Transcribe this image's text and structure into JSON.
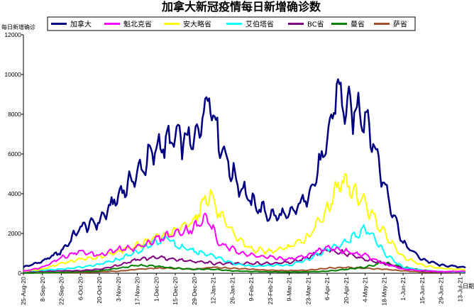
{
  "chart_data": {
    "type": "line",
    "title": "加拿大新冠疫情每日新增确诊数",
    "ylabel": "每日新增确诊",
    "xlabel": "日期",
    "ylim": [
      0,
      12000
    ],
    "yticks": [
      0,
      2000,
      4000,
      6000,
      8000,
      10000,
      12000
    ],
    "x_start": "2020-08-25",
    "x_end": "2021-07-17",
    "xtick_labels": [
      "25-Aug-20",
      "8-Sep-20",
      "22-Sep-20",
      "6-Oct-20",
      "20-Oct-20",
      "3-Nov-20",
      "17-Nov-20",
      "1-Dec-20",
      "15-Dec-20",
      "29-Dec-20",
      "12-Jan-21",
      "26-Jan-21",
      "9-Feb-21",
      "23-Feb-21",
      "9-Mar-21",
      "23-Mar-21",
      "6-Apr-21",
      "20-Apr-21",
      "4-May-21",
      "18-May-21",
      "1-Jun-21",
      "15-Jun-21",
      "29-Jun-21",
      "13-Jul-21"
    ],
    "grid": false,
    "legend_position": "top",
    "series": [
      {
        "name": "加拿大",
        "color": "#000080",
        "width": 2.5,
        "points": [
          [
            "2020-08-25",
            300
          ],
          [
            "2020-09-08",
            600
          ],
          [
            "2020-09-22",
            1100
          ],
          [
            "2020-10-06",
            2300
          ],
          [
            "2020-10-20",
            2600
          ],
          [
            "2020-11-03",
            3900
          ],
          [
            "2020-11-17",
            5000
          ],
          [
            "2020-12-01",
            6300
          ],
          [
            "2020-12-15",
            6800
          ],
          [
            "2020-12-29",
            6600
          ],
          [
            "2021-01-09",
            9100
          ],
          [
            "2021-01-16",
            6800
          ],
          [
            "2021-01-26",
            5000
          ],
          [
            "2021-02-09",
            3600
          ],
          [
            "2021-02-23",
            2900
          ],
          [
            "2021-03-09",
            2900
          ],
          [
            "2021-03-23",
            3900
          ],
          [
            "2021-04-06",
            6400
          ],
          [
            "2021-04-13",
            9400
          ],
          [
            "2021-04-20",
            8200
          ],
          [
            "2021-05-04",
            8100
          ],
          [
            "2021-05-18",
            4500
          ],
          [
            "2021-06-01",
            1500
          ],
          [
            "2021-06-15",
            700
          ],
          [
            "2021-06-29",
            400
          ],
          [
            "2021-07-17",
            300
          ]
        ]
      },
      {
        "name": "魁北克省",
        "color": "#ff00ff",
        "width": 2,
        "points": [
          [
            "2020-08-25",
            100
          ],
          [
            "2020-09-08",
            300
          ],
          [
            "2020-09-22",
            800
          ],
          [
            "2020-10-06",
            1100
          ],
          [
            "2020-10-20",
            900
          ],
          [
            "2020-11-03",
            1200
          ],
          [
            "2020-11-17",
            1300
          ],
          [
            "2020-12-01",
            1700
          ],
          [
            "2020-12-15",
            2000
          ],
          [
            "2020-12-29",
            2300
          ],
          [
            "2021-01-08",
            2800
          ],
          [
            "2021-01-16",
            1500
          ],
          [
            "2021-01-26",
            1200
          ],
          [
            "2021-02-09",
            900
          ],
          [
            "2021-02-23",
            800
          ],
          [
            "2021-03-09",
            700
          ],
          [
            "2021-03-23",
            900
          ],
          [
            "2021-04-06",
            1300
          ],
          [
            "2021-04-20",
            1100
          ],
          [
            "2021-05-04",
            900
          ],
          [
            "2021-05-18",
            500
          ],
          [
            "2021-06-01",
            200
          ],
          [
            "2021-06-15",
            130
          ],
          [
            "2021-06-29",
            80
          ],
          [
            "2021-07-17",
            100
          ]
        ]
      },
      {
        "name": "安大略省",
        "color": "#ffff00",
        "width": 2,
        "points": [
          [
            "2020-08-25",
            100
          ],
          [
            "2020-09-08",
            200
          ],
          [
            "2020-09-22",
            500
          ],
          [
            "2020-10-06",
            700
          ],
          [
            "2020-10-20",
            800
          ],
          [
            "2020-11-03",
            1100
          ],
          [
            "2020-11-17",
            1400
          ],
          [
            "2020-12-01",
            1800
          ],
          [
            "2020-12-15",
            2100
          ],
          [
            "2020-12-29",
            2700
          ],
          [
            "2021-01-09",
            4100
          ],
          [
            "2021-01-16",
            3000
          ],
          [
            "2021-01-26",
            2000
          ],
          [
            "2021-02-09",
            1200
          ],
          [
            "2021-02-23",
            1100
          ],
          [
            "2021-03-09",
            1300
          ],
          [
            "2021-03-23",
            1800
          ],
          [
            "2021-04-06",
            3200
          ],
          [
            "2021-04-16",
            4700
          ],
          [
            "2021-04-23",
            4300
          ],
          [
            "2021-05-04",
            3500
          ],
          [
            "2021-05-18",
            2000
          ],
          [
            "2021-06-01",
            800
          ],
          [
            "2021-06-15",
            400
          ],
          [
            "2021-06-29",
            250
          ],
          [
            "2021-07-17",
            180
          ]
        ]
      },
      {
        "name": "艾伯塔省",
        "color": "#00ffff",
        "width": 2,
        "points": [
          [
            "2020-08-25",
            100
          ],
          [
            "2020-09-08",
            150
          ],
          [
            "2020-09-22",
            200
          ],
          [
            "2020-10-06",
            300
          ],
          [
            "2020-10-20",
            450
          ],
          [
            "2020-11-03",
            700
          ],
          [
            "2020-11-17",
            1100
          ],
          [
            "2020-12-01",
            1600
          ],
          [
            "2020-12-10",
            1800
          ],
          [
            "2020-12-15",
            1400
          ],
          [
            "2020-12-29",
            1100
          ],
          [
            "2021-01-12",
            900
          ],
          [
            "2021-01-26",
            500
          ],
          [
            "2021-02-09",
            350
          ],
          [
            "2021-02-23",
            400
          ],
          [
            "2021-03-09",
            400
          ],
          [
            "2021-03-23",
            700
          ],
          [
            "2021-04-06",
            1200
          ],
          [
            "2021-04-20",
            1600
          ],
          [
            "2021-05-04",
            2200
          ],
          [
            "2021-05-10",
            1900
          ],
          [
            "2021-05-18",
            1000
          ],
          [
            "2021-06-01",
            300
          ],
          [
            "2021-06-15",
            150
          ],
          [
            "2021-06-29",
            80
          ],
          [
            "2021-07-17",
            70
          ]
        ]
      },
      {
        "name": "BC省",
        "color": "#800080",
        "width": 2,
        "points": [
          [
            "2020-08-25",
            80
          ],
          [
            "2020-09-08",
            100
          ],
          [
            "2020-09-22",
            120
          ],
          [
            "2020-10-06",
            130
          ],
          [
            "2020-10-20",
            200
          ],
          [
            "2020-11-03",
            400
          ],
          [
            "2020-11-17",
            700
          ],
          [
            "2020-12-01",
            800
          ],
          [
            "2020-12-15",
            700
          ],
          [
            "2020-12-29",
            600
          ],
          [
            "2021-01-12",
            500
          ],
          [
            "2021-01-26",
            500
          ],
          [
            "2021-02-09",
            500
          ],
          [
            "2021-02-23",
            500
          ],
          [
            "2021-03-09",
            550
          ],
          [
            "2021-03-23",
            800
          ],
          [
            "2021-04-06",
            1200
          ],
          [
            "2021-04-20",
            1000
          ],
          [
            "2021-05-04",
            700
          ],
          [
            "2021-05-18",
            500
          ],
          [
            "2021-06-01",
            250
          ],
          [
            "2021-06-15",
            120
          ],
          [
            "2021-06-29",
            60
          ],
          [
            "2021-07-17",
            50
          ]
        ]
      },
      {
        "name": "曼省",
        "color": "#008000",
        "width": 2,
        "points": [
          [
            "2020-08-25",
            10
          ],
          [
            "2020-09-22",
            40
          ],
          [
            "2020-10-06",
            70
          ],
          [
            "2020-10-20",
            120
          ],
          [
            "2020-11-03",
            250
          ],
          [
            "2020-11-17",
            400
          ],
          [
            "2020-12-01",
            350
          ],
          [
            "2020-12-15",
            250
          ],
          [
            "2020-12-29",
            200
          ],
          [
            "2021-01-12",
            200
          ],
          [
            "2021-01-26",
            120
          ],
          [
            "2021-02-09",
            90
          ],
          [
            "2021-02-23",
            70
          ],
          [
            "2021-03-09",
            60
          ],
          [
            "2021-03-23",
            70
          ],
          [
            "2021-04-06",
            100
          ],
          [
            "2021-04-20",
            200
          ],
          [
            "2021-05-04",
            300
          ],
          [
            "2021-05-18",
            550
          ],
          [
            "2021-06-01",
            300
          ],
          [
            "2021-06-15",
            150
          ],
          [
            "2021-06-29",
            60
          ],
          [
            "2021-07-17",
            30
          ]
        ]
      },
      {
        "name": "萨省",
        "color": "#a0522d",
        "width": 2,
        "points": [
          [
            "2020-08-25",
            10
          ],
          [
            "2020-09-22",
            20
          ],
          [
            "2020-10-06",
            30
          ],
          [
            "2020-10-20",
            70
          ],
          [
            "2020-11-03",
            100
          ],
          [
            "2020-11-17",
            200
          ],
          [
            "2020-12-01",
            250
          ],
          [
            "2020-12-15",
            250
          ],
          [
            "2020-12-29",
            200
          ],
          [
            "2021-01-12",
            300
          ],
          [
            "2021-01-26",
            250
          ],
          [
            "2021-02-09",
            200
          ],
          [
            "2021-02-23",
            150
          ],
          [
            "2021-03-09",
            130
          ],
          [
            "2021-03-23",
            150
          ],
          [
            "2021-04-06",
            250
          ],
          [
            "2021-04-20",
            300
          ],
          [
            "2021-05-04",
            250
          ],
          [
            "2021-05-18",
            200
          ],
          [
            "2021-06-01",
            120
          ],
          [
            "2021-06-15",
            60
          ],
          [
            "2021-06-29",
            40
          ],
          [
            "2021-07-17",
            20
          ]
        ]
      }
    ]
  }
}
